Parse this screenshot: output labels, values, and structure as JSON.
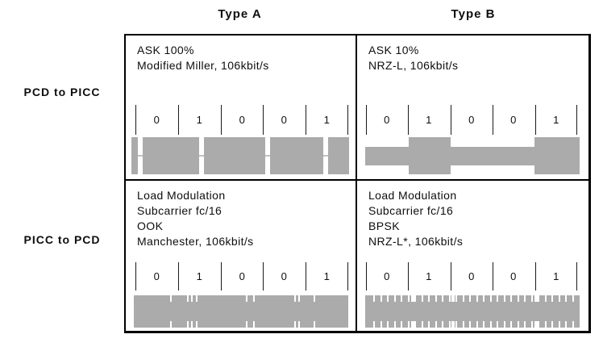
{
  "headers": {
    "type_a": "Type A",
    "type_b": "Type B"
  },
  "row_labels": {
    "pcd_to_picc": "PCD to PICC",
    "picc_to_pcd": "PICC to PCD"
  },
  "bits": [
    "0",
    "1",
    "0",
    "0",
    "1"
  ],
  "cells": {
    "a_pcd": {
      "lines": [
        "ASK 100%",
        "Modified Miller, 106kbit/s"
      ]
    },
    "b_pcd": {
      "lines": [
        "ASK 10%",
        "NRZ-L, 106kbit/s"
      ]
    },
    "a_picc": {
      "lines": [
        "Load Modulation",
        "Subcarrier fc/16",
        "OOK",
        "Manchester, 106kbit/s"
      ]
    },
    "b_picc": {
      "lines": [
        "Load Modulation",
        "Subcarrier fc/16",
        "BPSK",
        "NRZ-L*, 106kbit/s"
      ]
    }
  },
  "colors": {
    "band_gray": "#ABABAB",
    "pause_midline": "#C2C2C2",
    "tick_black": "#1a1a1a",
    "notch_white": "#ffffff"
  },
  "waveforms": {
    "a_pcd": {
      "encoding": "modified-miller-pauses",
      "kind": "pause",
      "band_w": 270,
      "band_h": 46,
      "pause_w": 6,
      "pauses": [
        8,
        84,
        166,
        238
      ]
    },
    "b_pcd": {
      "encoding": "nrz-l-ask10",
      "kind": "nrz",
      "band_w": 266,
      "band_h": 46,
      "low_h": 23,
      "high_segments": [
        [
          54,
          106
        ],
        [
          210,
          266
        ]
      ]
    },
    "a_picc": {
      "encoding": "ook-manchester-subcarrier",
      "kind": "notch",
      "band_w": 266,
      "band_h": 40,
      "notch_w": 2,
      "notch_h": 8,
      "notches": [
        45,
        66,
        71,
        77,
        139,
        148,
        199,
        204,
        223
      ]
    },
    "b_picc": {
      "encoding": "bpsk-subcarrier",
      "kind": "notch",
      "band_w": 266,
      "band_h": 40,
      "notch_w": 2,
      "notch_h": 8,
      "notch_start": 10,
      "notch_step": 8.5,
      "notch_count": 30,
      "wide_notch_w": 4,
      "wide_notches": [
        57,
        107,
        210
      ]
    }
  }
}
